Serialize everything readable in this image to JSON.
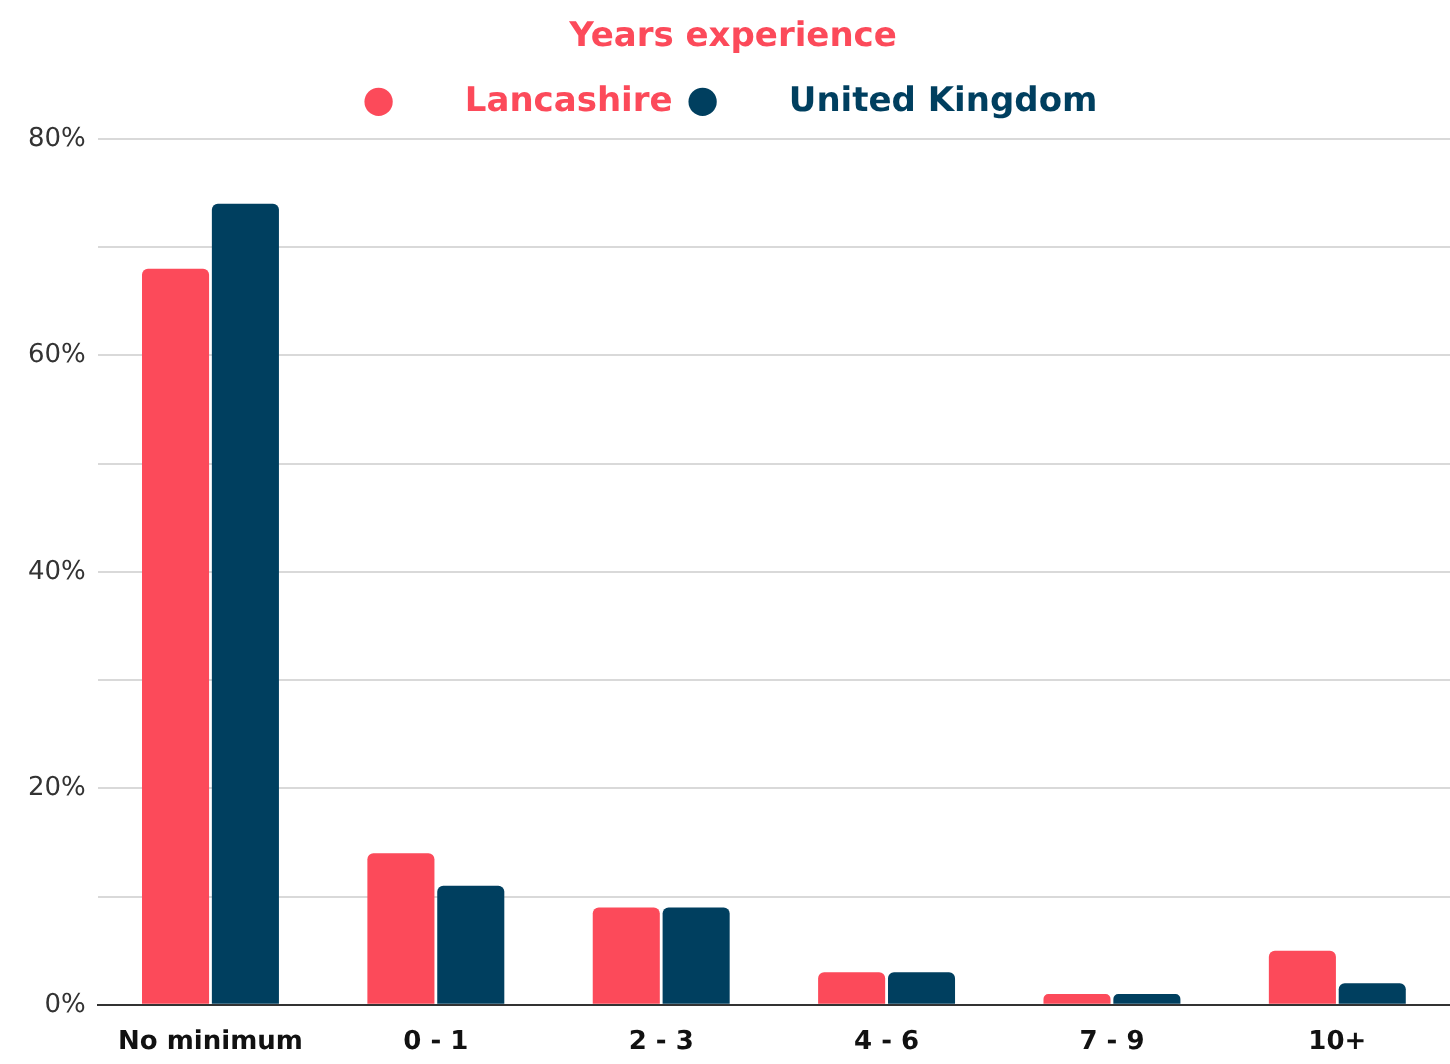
{
  "chart_data": {
    "type": "bar",
    "legend_title": "Years experience",
    "categories": [
      "No minimum",
      "0 - 1",
      "2 - 3",
      "4 - 6",
      "7 - 9",
      "10+"
    ],
    "series": [
      {
        "name": "Lancashire",
        "color": "#fc4a5a",
        "values": [
          68,
          14,
          9,
          3,
          1,
          5
        ]
      },
      {
        "name": "United Kingdom",
        "color": "#003f5f",
        "values": [
          74,
          11,
          9,
          3,
          1,
          2
        ]
      }
    ],
    "ylim": [
      0,
      80
    ],
    "yticks": [
      {
        "value": 0,
        "label": "0%"
      },
      {
        "value": 10,
        "label": null
      },
      {
        "value": 20,
        "label": "20%"
      },
      {
        "value": 30,
        "label": null
      },
      {
        "value": 40,
        "label": "40%"
      },
      {
        "value": 50,
        "label": null
      },
      {
        "value": 60,
        "label": "60%"
      },
      {
        "value": 70,
        "label": null
      },
      {
        "value": 80,
        "label": "80%"
      }
    ],
    "grid": true,
    "legend": "top",
    "marker": "circle"
  }
}
